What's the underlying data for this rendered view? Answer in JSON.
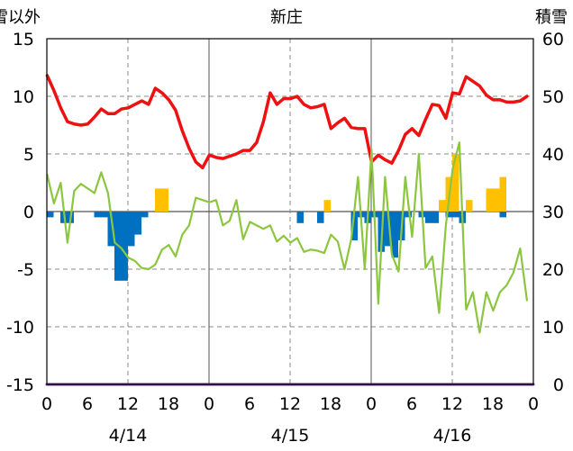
{
  "chart_data": {
    "type": "bar+line",
    "title": "新庄",
    "y_left_label": "積雪以外",
    "y_right_label": "積雪",
    "y_left": {
      "min": -15,
      "max": 15,
      "ticks": [
        15,
        10,
        5,
        0,
        -5,
        -10,
        -15
      ]
    },
    "y_right": {
      "min": 0,
      "max": 60,
      "ticks": [
        60,
        50,
        40,
        30,
        20,
        10,
        0
      ]
    },
    "x_tick_labels": [
      "0",
      "6",
      "12",
      "18",
      "0",
      "6",
      "12",
      "18",
      "0",
      "6",
      "12",
      "18",
      "0"
    ],
    "date_labels": [
      "4/14",
      "4/15",
      "4/16"
    ],
    "grid": true,
    "colors": {
      "temperature": "#ee1111",
      "green_series": "#8cc63f",
      "snowfall": "#ffc000",
      "negative_bars": "#0070c0",
      "snow_depth": "#7030a0"
    },
    "series": [
      {
        "axis": "left",
        "kind": "line",
        "color_key": "temperature",
        "values": [
          11.8,
          10.5,
          9.0,
          7.8,
          7.6,
          7.5,
          7.6,
          8.2,
          8.9,
          8.5,
          8.5,
          8.9,
          9.0,
          9.3,
          9.6,
          9.3,
          10.7,
          10.3,
          9.7,
          8.8,
          7.0,
          5.5,
          4.3,
          3.8,
          4.9,
          4.7,
          4.6,
          4.8,
          5.0,
          5.3,
          5.3,
          6.0,
          7.8,
          10.3,
          9.3,
          9.8,
          9.8,
          10.0,
          9.3,
          9.0,
          9.1,
          9.3,
          7.2,
          7.7,
          8.1,
          7.3,
          7.2,
          7.2,
          4.3,
          4.9,
          4.5,
          4.2,
          5.3,
          6.7,
          7.2,
          6.6,
          8.0,
          9.3,
          9.2,
          8.1,
          10.3,
          10.2,
          11.7,
          11.3,
          10.9,
          10.1,
          9.7,
          9.7,
          9.5,
          9.5,
          9.6,
          10.0
        ]
      },
      {
        "axis": "left",
        "kind": "line",
        "color_key": "green_series",
        "values": [
          3.2,
          0.7,
          2.5,
          -2.7,
          1.8,
          2.4,
          2.0,
          1.6,
          3.4,
          1.6,
          -2.7,
          -3.2,
          -4.0,
          -4.3,
          -4.9,
          -5.0,
          -4.6,
          -3.3,
          -2.9,
          -3.9,
          -2.0,
          -1.2,
          1.2,
          1.0,
          0.8,
          1.0,
          -1.2,
          -0.8,
          1.0,
          -2.4,
          -0.9,
          -1.2,
          -1.5,
          -1.2,
          -2.6,
          -2.1,
          -2.7,
          -2.3,
          -3.5,
          -3.3,
          -3.4,
          -3.6,
          -2.0,
          -2.6,
          -5.0,
          -2.4,
          3.0,
          -5.0,
          5.4,
          -8.0,
          3.0,
          -3.7,
          -5.2,
          3.0,
          -2.2,
          5.0,
          -4.9,
          -3.9,
          -8.8,
          -1.2,
          3.7,
          6.0,
          -8.5,
          -7.0,
          -10.5,
          -7.0,
          -8.6,
          -7.0,
          -6.4,
          -5.3,
          -3.2,
          -7.7
        ]
      },
      {
        "axis": "left",
        "kind": "bar",
        "color_key": "snowfall",
        "values": [
          0,
          0,
          0,
          0,
          0,
          0,
          0,
          0,
          0,
          0,
          0,
          0,
          0,
          0,
          0,
          0,
          2,
          2,
          0,
          0,
          0,
          0,
          0,
          0,
          0,
          0,
          0,
          0,
          0,
          0,
          0,
          0,
          0,
          0,
          0,
          0,
          0,
          0,
          0,
          0,
          0,
          1,
          0,
          0,
          0,
          0,
          0,
          0,
          0,
          0,
          0,
          0,
          0,
          0,
          0,
          0,
          0,
          0,
          1,
          3,
          5,
          0,
          1,
          0,
          0,
          2,
          2,
          3,
          0,
          0,
          0,
          0
        ]
      },
      {
        "axis": "left",
        "kind": "bar",
        "color_key": "negative_bars",
        "values": [
          -0.5,
          0,
          -1,
          -1,
          0,
          0,
          0,
          -0.5,
          -0.5,
          -3,
          -6,
          -6,
          -3,
          -2,
          -0.5,
          0,
          0,
          0,
          0,
          0,
          0,
          0,
          0,
          0,
          0,
          0,
          0,
          0,
          0,
          0,
          0,
          0,
          0,
          0,
          0,
          0,
          0,
          -1,
          0,
          0,
          -1,
          0,
          0,
          0,
          0,
          -2.5,
          -0.5,
          -1,
          -0.5,
          -3.5,
          -3,
          -4,
          -2.5,
          -0.5,
          0,
          -0.5,
          -1,
          -1,
          0,
          -0.5,
          -0.5,
          -1,
          0,
          0,
          0,
          0,
          0,
          -0.5,
          0,
          0,
          0,
          0
        ]
      },
      {
        "axis": "right",
        "kind": "line",
        "color_key": "snow_depth",
        "values": [
          0,
          0,
          0,
          0,
          0,
          0,
          0,
          0,
          0,
          0,
          0,
          0,
          0,
          0,
          0,
          0,
          0,
          0,
          0,
          0,
          0,
          0,
          0,
          0,
          0,
          0,
          0,
          0,
          0,
          0,
          0,
          0,
          0,
          0,
          0,
          0,
          0,
          0,
          0,
          0,
          0,
          0,
          0,
          0,
          0,
          0,
          0,
          0,
          0,
          0,
          0,
          0,
          0,
          0,
          0,
          0,
          0,
          0,
          0,
          0,
          0,
          0,
          0,
          0,
          0,
          0,
          0,
          0,
          0,
          0,
          0,
          0
        ]
      }
    ]
  }
}
